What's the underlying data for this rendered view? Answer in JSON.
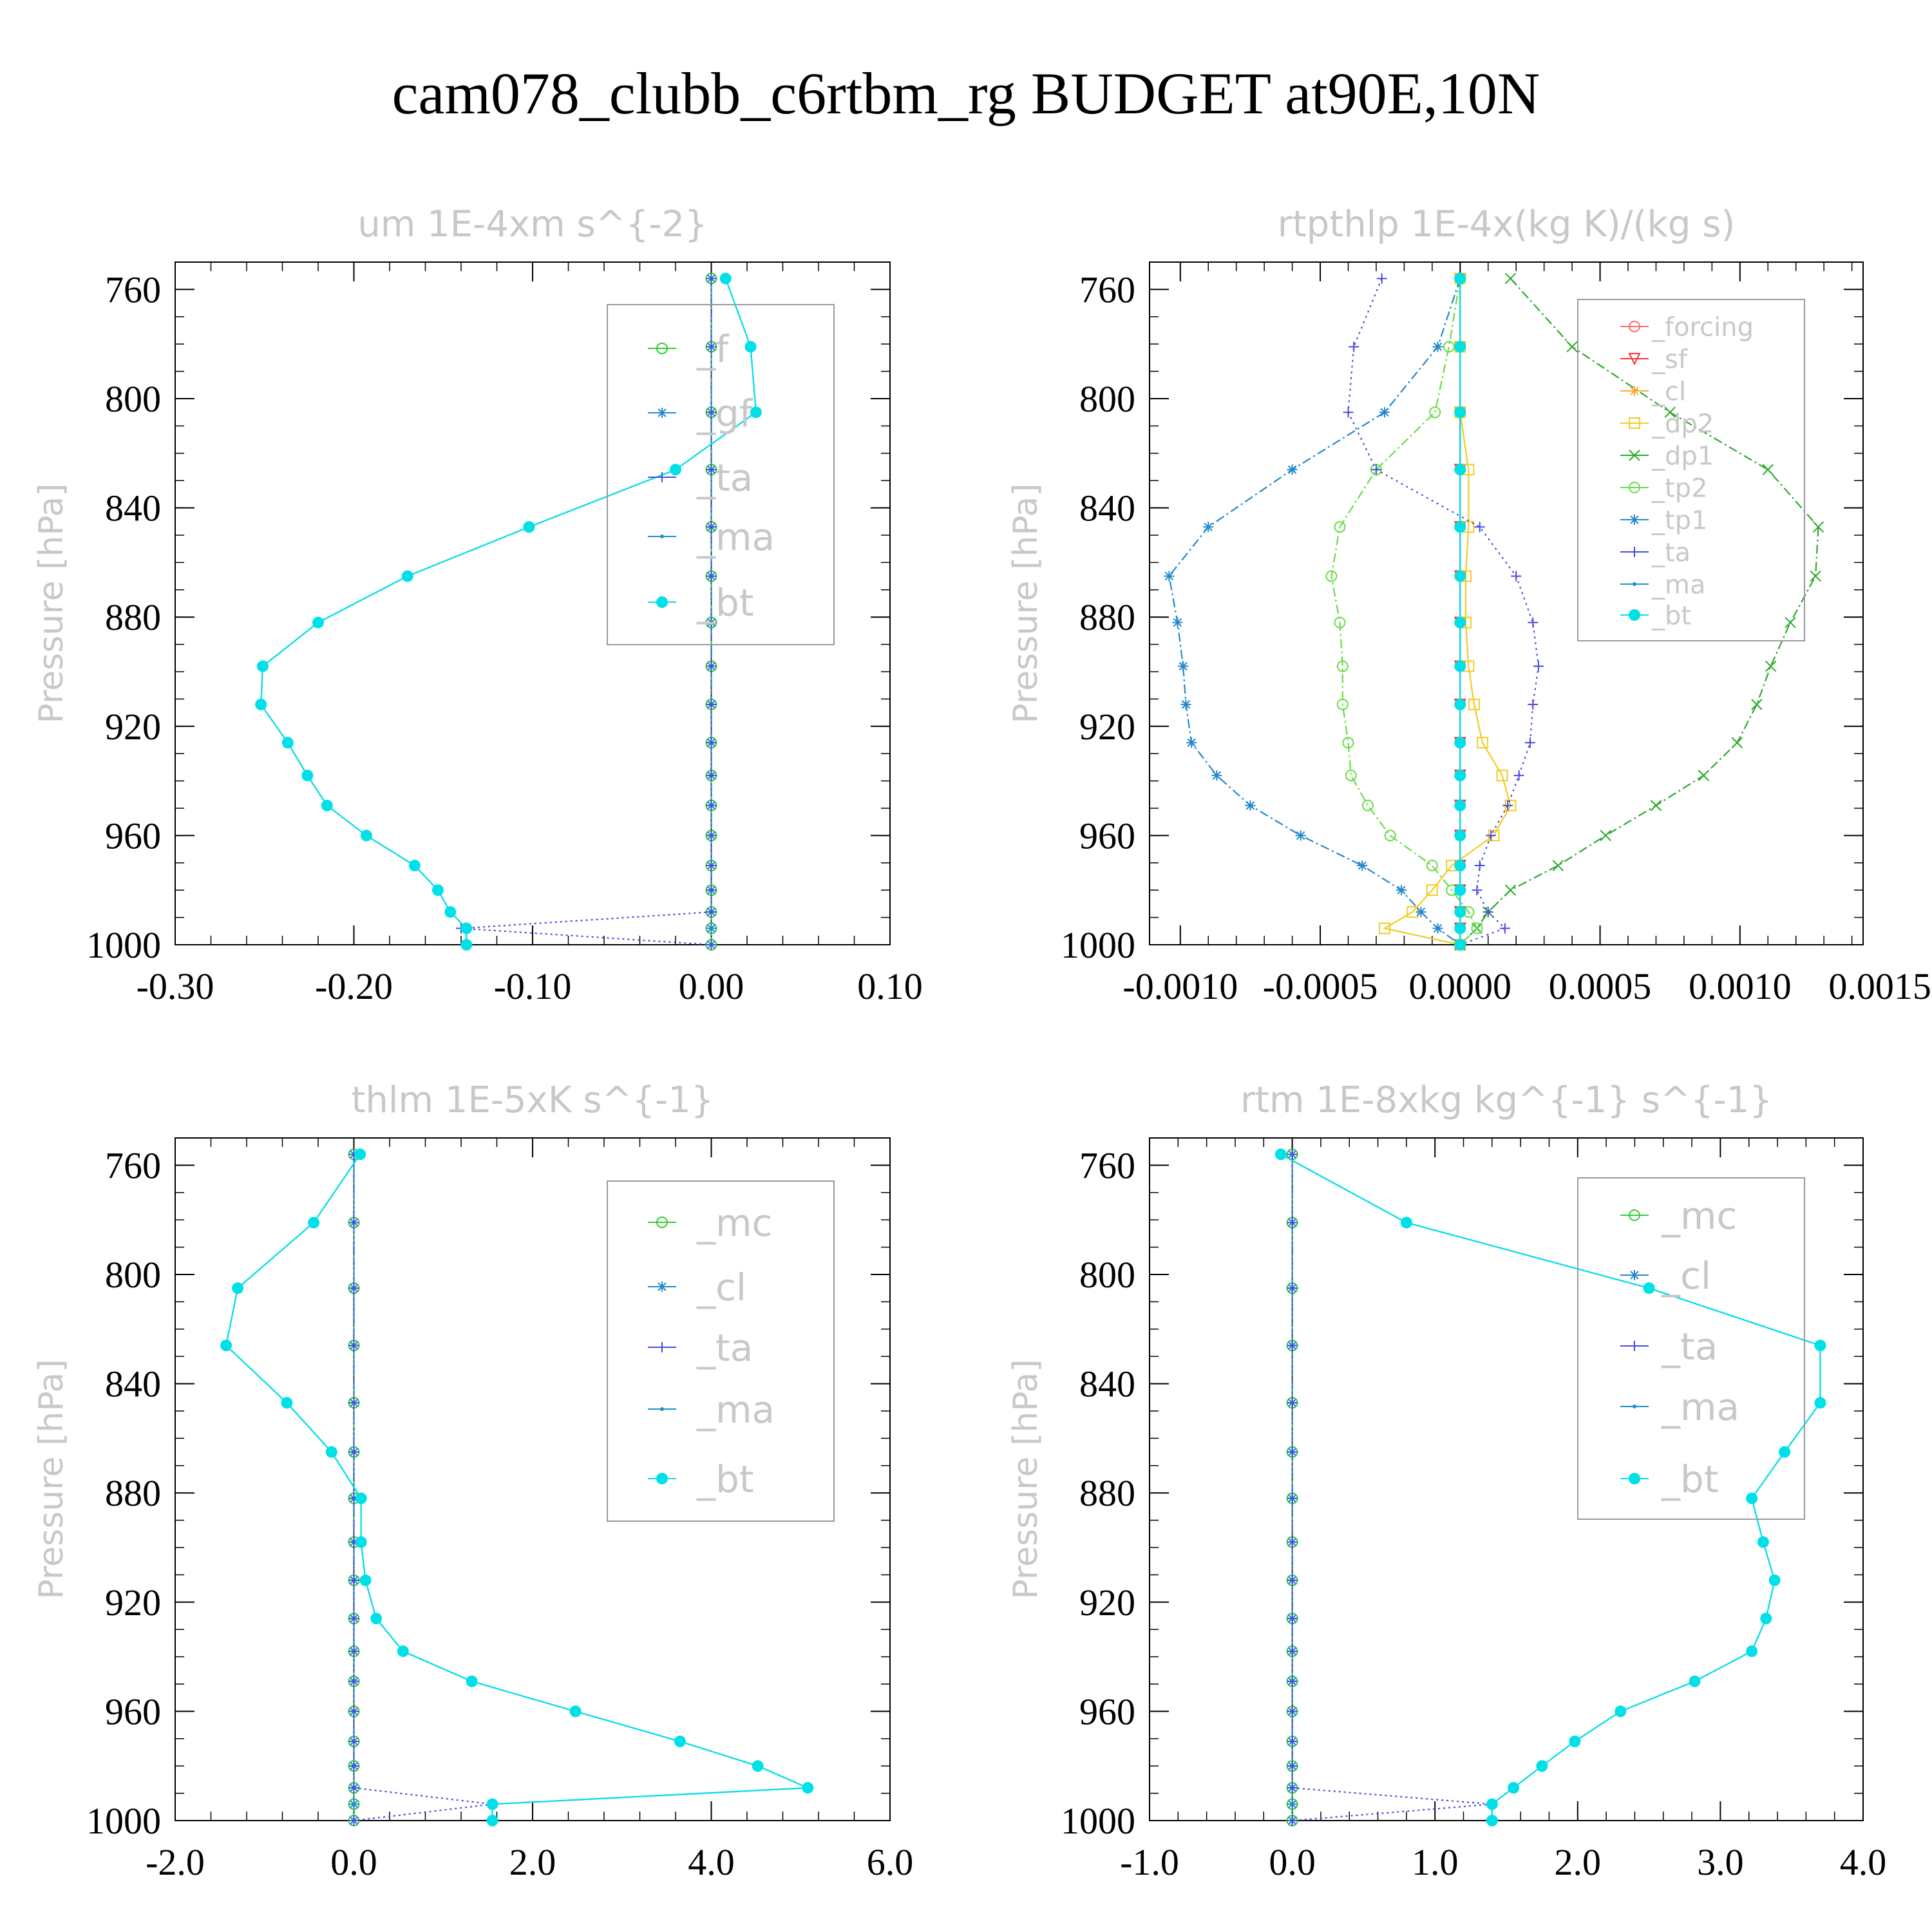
{
  "figure_title": "cam078_clubb_c6rtbm_rg  BUDGET at90E,10N",
  "colors": {
    "forcing": "#ff6b6b",
    "sf": "#ff3030",
    "cl": "#ffaa33",
    "dp2": "#f2cc22",
    "dp1": "#2aaa2a",
    "tp2": "#66dd44",
    "tp1": "#2288cc",
    "ta": "#4a4add",
    "ma": "#1e90cc",
    "bt": "#00e0e8",
    "f": "#33cc33",
    "gf": "#2288cc",
    "mc": "#33cc33"
  },
  "chart_data": [
    {
      "type": "line",
      "title": "um  1E-4xm s^{-2}",
      "ylabel": "Pressure [hPa]",
      "y_inverted": true,
      "ylim": [
        750,
        1000
      ],
      "xlim": [
        -0.3,
        0.1
      ],
      "xticks": [
        -0.3,
        -0.2,
        -0.1,
        0.0,
        0.1
      ],
      "xtick_labels": [
        "-0.30",
        "-0.20",
        "-0.10",
        "0.00",
        "0.10"
      ],
      "yticks": [
        760,
        800,
        840,
        880,
        920,
        960,
        1000
      ],
      "ytick_labels": [
        "760",
        "800",
        "840",
        "880",
        "920",
        "960",
        "1000"
      ],
      "legend_position": "top-right",
      "legend": [
        "_f",
        "_gf",
        "_ta",
        "_ma",
        "_bt"
      ],
      "pressure": [
        756,
        781,
        805,
        826,
        847,
        865,
        882,
        898,
        912,
        926,
        938,
        949,
        960,
        971,
        980,
        988,
        994,
        1000
      ],
      "series": [
        {
          "name": "_f",
          "key": "f",
          "marker": "circle",
          "dash": "6,5",
          "values": [
            0,
            0,
            0,
            0,
            0,
            0,
            0,
            0,
            0,
            0,
            0,
            0,
            0,
            0,
            0,
            0,
            0,
            0
          ]
        },
        {
          "name": "_gf",
          "key": "gf",
          "marker": "star",
          "dash": "14,5,3,5",
          "values": [
            0,
            0,
            0,
            0,
            0,
            0,
            0,
            0,
            0,
            0,
            0,
            0,
            0,
            0,
            0,
            0,
            0,
            0
          ]
        },
        {
          "name": "_ta",
          "key": "ta",
          "marker": "plus",
          "dash": "3,5",
          "values": [
            0,
            0,
            0,
            0,
            0,
            0,
            0,
            0,
            0,
            0,
            0,
            0,
            0,
            0,
            0,
            0,
            -0.14,
            0
          ]
        },
        {
          "name": "_ma",
          "key": "ma",
          "marker": "dot",
          "dash": "4,3",
          "values": [
            0.008,
            0.022,
            0.025,
            -0.02,
            -0.102,
            -0.17,
            -0.22,
            -0.251,
            -0.252,
            -0.237,
            -0.226,
            -0.215,
            -0.193,
            -0.166,
            -0.153,
            -0.146,
            -0.137,
            -0.137
          ]
        },
        {
          "name": "_bt",
          "key": "bt",
          "marker": "disc",
          "dash": "",
          "values": [
            0.008,
            0.022,
            0.025,
            -0.02,
            -0.102,
            -0.17,
            -0.22,
            -0.251,
            -0.252,
            -0.237,
            -0.226,
            -0.215,
            -0.193,
            -0.166,
            -0.153,
            -0.146,
            -0.137,
            -0.137
          ]
        }
      ]
    },
    {
      "type": "line",
      "title": "rtpthlp  1E-4x(kg K)/(kg s)",
      "ylabel": "Pressure [hPa]",
      "y_inverted": true,
      "ylim": [
        750,
        1000
      ],
      "xlim": [
        -0.00111,
        0.00144
      ],
      "xticks": [
        -0.001,
        -0.0005,
        0.0,
        0.0005,
        0.001,
        0.0015
      ],
      "xtick_labels": [
        "-0.0010",
        "-0.0005",
        "0.0000",
        "0.0005",
        "0.0010",
        "0.0015"
      ],
      "yticks": [
        760,
        800,
        840,
        880,
        920,
        960,
        1000
      ],
      "ytick_labels": [
        "760",
        "800",
        "840",
        "880",
        "920",
        "960",
        "1000"
      ],
      "legend_position": "top-right",
      "legend": [
        "_forcing",
        "_sf",
        "_cl",
        "_dp2",
        "_dp1",
        "_tp2",
        "_tp1",
        "_ta",
        "_ma",
        "_bt"
      ],
      "pressure": [
        756,
        781,
        805,
        826,
        847,
        865,
        882,
        898,
        912,
        926,
        938,
        949,
        960,
        971,
        980,
        988,
        994,
        1000
      ],
      "series": [
        {
          "name": "_forcing",
          "key": "forcing",
          "marker": "circle",
          "dash": "",
          "values": [
            0,
            0,
            0,
            0,
            0,
            0,
            0,
            0,
            0,
            0,
            0,
            0,
            0,
            0,
            0,
            0,
            0,
            0
          ]
        },
        {
          "name": "_sf",
          "key": "sf",
          "marker": "tri",
          "dash": "",
          "values": [
            0,
            0,
            0,
            0,
            0,
            0,
            0,
            0,
            0,
            0,
            0,
            0,
            0,
            0,
            0,
            0,
            0,
            0
          ]
        },
        {
          "name": "_cl",
          "key": "cl",
          "marker": "star",
          "dash": "6,4",
          "values": [
            0,
            0,
            0,
            0,
            0,
            0,
            0,
            0,
            0,
            0,
            0,
            0,
            0,
            0,
            0,
            0,
            0,
            0
          ]
        },
        {
          "name": "_dp2",
          "key": "dp2",
          "marker": "square",
          "dash": "",
          "values": [
            0,
            0,
            0,
            3e-05,
            3e-05,
            2e-05,
            2e-05,
            3e-05,
            5e-05,
            8e-05,
            0.00015,
            0.00018,
            0.00012,
            -3e-05,
            -0.0001,
            -0.00017,
            -0.00027,
            0
          ]
        },
        {
          "name": "_dp1",
          "key": "dp1",
          "marker": "x",
          "dash": "14,5,3,5",
          "values": [
            0.00018,
            0.0004,
            0.00075,
            0.0011,
            0.00128,
            0.00127,
            0.00118,
            0.00111,
            0.00106,
            0.00099,
            0.00087,
            0.0007,
            0.00052,
            0.00035,
            0.00018,
            0.0001,
            6e-05,
            0
          ]
        },
        {
          "name": "_tp2",
          "key": "tp2",
          "marker": "circle",
          "dash": "14,5,3,5",
          "values": [
            0,
            -4e-05,
            -9e-05,
            -0.0003,
            -0.00043,
            -0.00046,
            -0.00043,
            -0.00042,
            -0.00042,
            -0.0004,
            -0.00039,
            -0.00033,
            -0.00025,
            -0.0001,
            -3e-05,
            3e-05,
            6e-05,
            0
          ]
        },
        {
          "name": "_tp1",
          "key": "tp1",
          "marker": "star",
          "dash": "14,5,3,5",
          "values": [
            0,
            -8e-05,
            -0.00027,
            -0.0006,
            -0.0009,
            -0.00104,
            -0.00101,
            -0.00099,
            -0.00098,
            -0.00096,
            -0.00087,
            -0.00075,
            -0.00057,
            -0.00035,
            -0.00021,
            -0.00014,
            -8e-05,
            0
          ]
        },
        {
          "name": "_ta",
          "key": "ta",
          "marker": "plus",
          "dash": "3,6",
          "values": [
            -0.00028,
            -0.00038,
            -0.0004,
            -0.0003,
            7e-05,
            0.0002,
            0.00026,
            0.00028,
            0.00026,
            0.00025,
            0.00021,
            0.00017,
            0.00011,
            7e-05,
            6e-05,
            0.0001,
            0.00016,
            0
          ]
        },
        {
          "name": "_ma",
          "key": "ma",
          "marker": "dot",
          "dash": "4,3",
          "values": [
            0,
            0,
            0,
            0,
            0,
            0,
            0,
            0,
            0,
            0,
            0,
            0,
            0,
            0,
            0,
            0,
            0,
            0
          ]
        },
        {
          "name": "_bt",
          "key": "bt",
          "marker": "disc",
          "dash": "",
          "values": [
            0,
            0,
            0,
            0,
            0,
            0,
            0,
            0,
            0,
            0,
            0,
            0,
            0,
            0,
            0,
            0,
            0,
            0
          ]
        }
      ]
    },
    {
      "type": "line",
      "title": "thlm  1E-5xK s^{-1}",
      "ylabel": "Pressure [hPa]",
      "y_inverted": true,
      "ylim": [
        750,
        1000
      ],
      "xlim": [
        -2.0,
        6.0
      ],
      "xticks": [
        -2.0,
        0.0,
        2.0,
        4.0,
        6.0
      ],
      "xtick_labels": [
        "-2.0",
        "0.0",
        "2.0",
        "4.0",
        "6.0"
      ],
      "yticks": [
        760,
        800,
        840,
        880,
        920,
        960,
        1000
      ],
      "ytick_labels": [
        "760",
        "800",
        "840",
        "880",
        "920",
        "960",
        "1000"
      ],
      "legend_position": "top-right",
      "legend": [
        "_mc",
        "_cl",
        "_ta",
        "_ma",
        "_bt"
      ],
      "pressure": [
        756,
        781,
        805,
        826,
        847,
        865,
        882,
        898,
        912,
        926,
        938,
        949,
        960,
        971,
        980,
        988,
        994,
        1000
      ],
      "series": [
        {
          "name": "_mc",
          "key": "mc",
          "marker": "circle",
          "dash": "6,5",
          "values": [
            0,
            0,
            0,
            0,
            0,
            0,
            0,
            0,
            0,
            0,
            0,
            0,
            0,
            0,
            0,
            0,
            0,
            0
          ]
        },
        {
          "name": "_cl",
          "key": "tp1",
          "marker": "star",
          "dash": "14,5,3,5",
          "values": [
            0,
            0,
            0,
            0,
            0,
            0,
            0,
            0,
            0,
            0,
            0,
            0,
            0,
            0,
            0,
            0,
            0,
            0
          ]
        },
        {
          "name": "_ta",
          "key": "ta",
          "marker": "plus",
          "dash": "3,5",
          "values": [
            0,
            0,
            0,
            0,
            0,
            0,
            0,
            0,
            0,
            0,
            0,
            0,
            0,
            0,
            0,
            0,
            1.55,
            0
          ]
        },
        {
          "name": "_ma",
          "key": "ma",
          "marker": "dot",
          "dash": "4,3",
          "values": [
            0.07,
            -0.45,
            -1.3,
            -1.43,
            -0.75,
            -0.25,
            0.08,
            0.08,
            0.13,
            0.25,
            0.55,
            1.32,
            2.48,
            3.65,
            4.52,
            5.08,
            1.55,
            1.55
          ]
        },
        {
          "name": "_bt",
          "key": "bt",
          "marker": "disc",
          "dash": "",
          "values": [
            0.07,
            -0.45,
            -1.3,
            -1.43,
            -0.75,
            -0.25,
            0.08,
            0.08,
            0.13,
            0.25,
            0.55,
            1.32,
            2.48,
            3.65,
            4.52,
            5.08,
            1.55,
            1.55
          ]
        }
      ]
    },
    {
      "type": "line",
      "title": "rtm  1E-8xkg kg^{-1} s^{-1}",
      "ylabel": "Pressure [hPa]",
      "y_inverted": true,
      "ylim": [
        750,
        1000
      ],
      "xlim": [
        -1.0,
        4.0
      ],
      "xticks": [
        -1.0,
        0.0,
        1.0,
        2.0,
        3.0,
        4.0
      ],
      "xtick_labels": [
        "-1.0",
        "0.0",
        "1.0",
        "2.0",
        "3.0",
        "4.0"
      ],
      "yticks": [
        760,
        800,
        840,
        880,
        920,
        960,
        1000
      ],
      "ytick_labels": [
        "760",
        "800",
        "840",
        "880",
        "920",
        "960",
        "1000"
      ],
      "legend_position": "top-right",
      "legend": [
        "_mc",
        "_cl",
        "_ta",
        "_ma",
        "_bt"
      ],
      "pressure": [
        756,
        781,
        805,
        826,
        847,
        865,
        882,
        898,
        912,
        926,
        938,
        949,
        960,
        971,
        980,
        988,
        994,
        1000
      ],
      "series": [
        {
          "name": "_mc",
          "key": "mc",
          "marker": "circle",
          "dash": "6,5",
          "values": [
            0,
            0,
            0,
            0,
            0,
            0,
            0,
            0,
            0,
            0,
            0,
            0,
            0,
            0,
            0,
            0,
            0,
            0
          ]
        },
        {
          "name": "_cl",
          "key": "tp1",
          "marker": "star",
          "dash": "14,5,3,5",
          "values": [
            0,
            0,
            0,
            0,
            0,
            0,
            0,
            0,
            0,
            0,
            0,
            0,
            0,
            0,
            0,
            0,
            0,
            0
          ]
        },
        {
          "name": "_ta",
          "key": "ta",
          "marker": "plus",
          "dash": "3,5",
          "values": [
            0,
            0,
            0,
            0,
            0,
            0,
            0,
            0,
            0,
            0,
            0,
            0,
            0,
            0,
            0,
            0,
            1.4,
            0
          ]
        },
        {
          "name": "_ma",
          "key": "ma",
          "marker": "dot",
          "dash": "4,3",
          "values": [
            -0.08,
            0.8,
            2.5,
            3.7,
            3.7,
            3.45,
            3.22,
            3.3,
            3.38,
            3.32,
            3.22,
            2.82,
            2.3,
            1.98,
            1.75,
            1.55,
            1.4,
            1.4
          ]
        },
        {
          "name": "_bt",
          "key": "bt",
          "marker": "disc",
          "dash": "",
          "values": [
            -0.08,
            0.8,
            2.5,
            3.7,
            3.7,
            3.45,
            3.22,
            3.3,
            3.38,
            3.32,
            3.22,
            2.82,
            2.3,
            1.98,
            1.75,
            1.55,
            1.4,
            1.4
          ]
        }
      ]
    }
  ]
}
